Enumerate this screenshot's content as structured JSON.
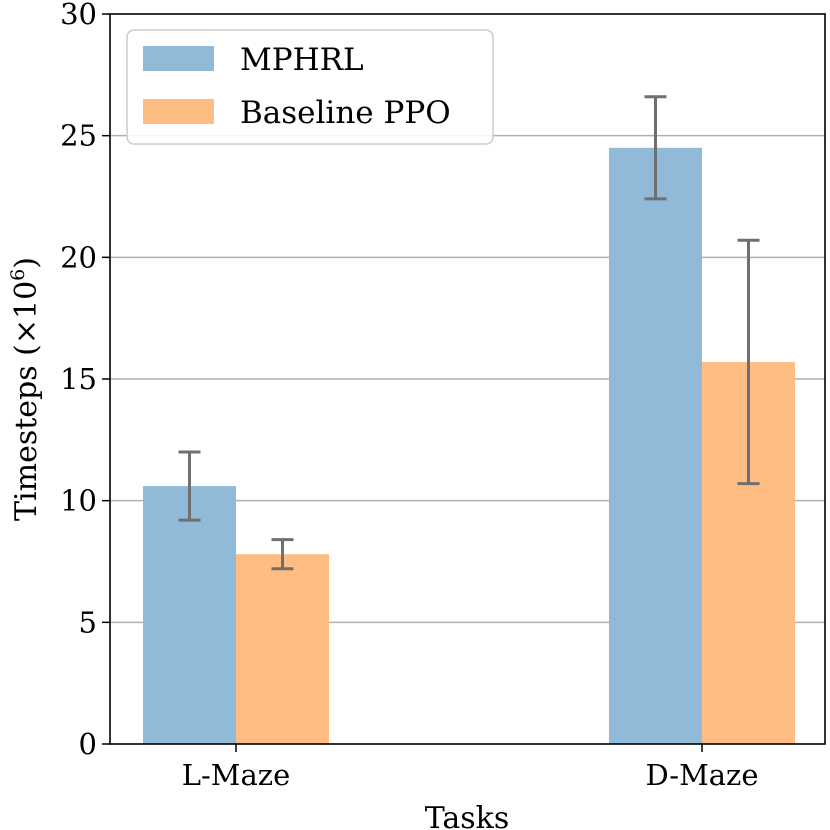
{
  "chart_data": {
    "type": "bar",
    "title": "",
    "xlabel": "Tasks",
    "ylabel": "Timesteps (×10",
    "ylabel_exponent": "6",
    "ylabel_close": ")",
    "ylim": [
      0,
      30
    ],
    "yticks": [
      0,
      5,
      10,
      15,
      20,
      25,
      30
    ],
    "grid": "y",
    "legend_position": "upper-left",
    "categories": [
      "L-Maze",
      "D-Maze"
    ],
    "series": [
      {
        "name": "MPHRL",
        "color": "#91BAD9",
        "values": [
          10.6,
          24.5
        ],
        "errors": [
          1.4,
          2.1
        ]
      },
      {
        "name": "Baseline PPO",
        "color": "#FFBD84",
        "values": [
          7.8,
          15.7
        ],
        "errors": [
          0.6,
          5.0
        ]
      }
    ],
    "error_color": "#6f6f6f"
  }
}
